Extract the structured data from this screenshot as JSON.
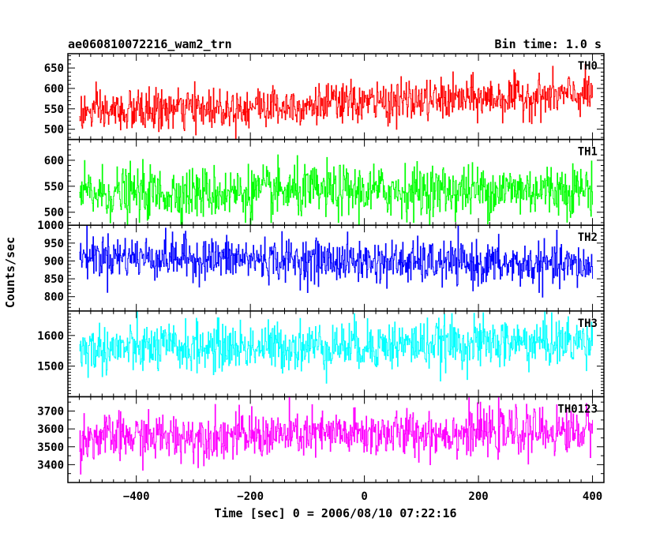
{
  "chart_data": {
    "type": "line",
    "title": "ae060810072216_wam2_trn",
    "subtitle": "Bin time: 1.0 s",
    "xlabel": "Time [sec] 0 = 2006/08/10 07:22:16",
    "ylabel": "Counts/sec",
    "xlim": [
      -520,
      420
    ],
    "x_ticks": [
      -400,
      -200,
      0,
      200,
      400
    ],
    "x_start": -500,
    "x_end": 400,
    "x_step": 1,
    "panels": [
      {
        "name": "TH0",
        "color": "#ff0000",
        "ylim": [
          475,
          685
        ],
        "yticks": [
          500,
          550,
          600,
          650
        ],
        "trend_start": 540,
        "trend_end": 585,
        "noise_sd": 25
      },
      {
        "name": "TH1",
        "color": "#00ff00",
        "ylim": [
          475,
          640
        ],
        "yticks": [
          500,
          550,
          600
        ],
        "trend_start": 535,
        "trend_end": 545,
        "noise_sd": 25
      },
      {
        "name": "TH2",
        "color": "#0000ff",
        "ylim": [
          760,
          1000
        ],
        "yticks": [
          800,
          850,
          900,
          950,
          1000
        ],
        "trend_start": 915,
        "trend_end": 885,
        "noise_sd": 30
      },
      {
        "name": "TH3",
        "color": "#00ffff",
        "ylim": [
          1400,
          1680
        ],
        "yticks": [
          1500,
          1600
        ],
        "trend_start": 1555,
        "trend_end": 1580,
        "noise_sd": 40
      },
      {
        "name": "TH0123",
        "color": "#ff00ff",
        "ylim": [
          3300,
          3780
        ],
        "yticks": [
          3400,
          3500,
          3600,
          3700
        ],
        "trend_start": 3550,
        "trend_end": 3590,
        "noise_sd": 65
      }
    ],
    "grid": false,
    "legend": "none"
  }
}
